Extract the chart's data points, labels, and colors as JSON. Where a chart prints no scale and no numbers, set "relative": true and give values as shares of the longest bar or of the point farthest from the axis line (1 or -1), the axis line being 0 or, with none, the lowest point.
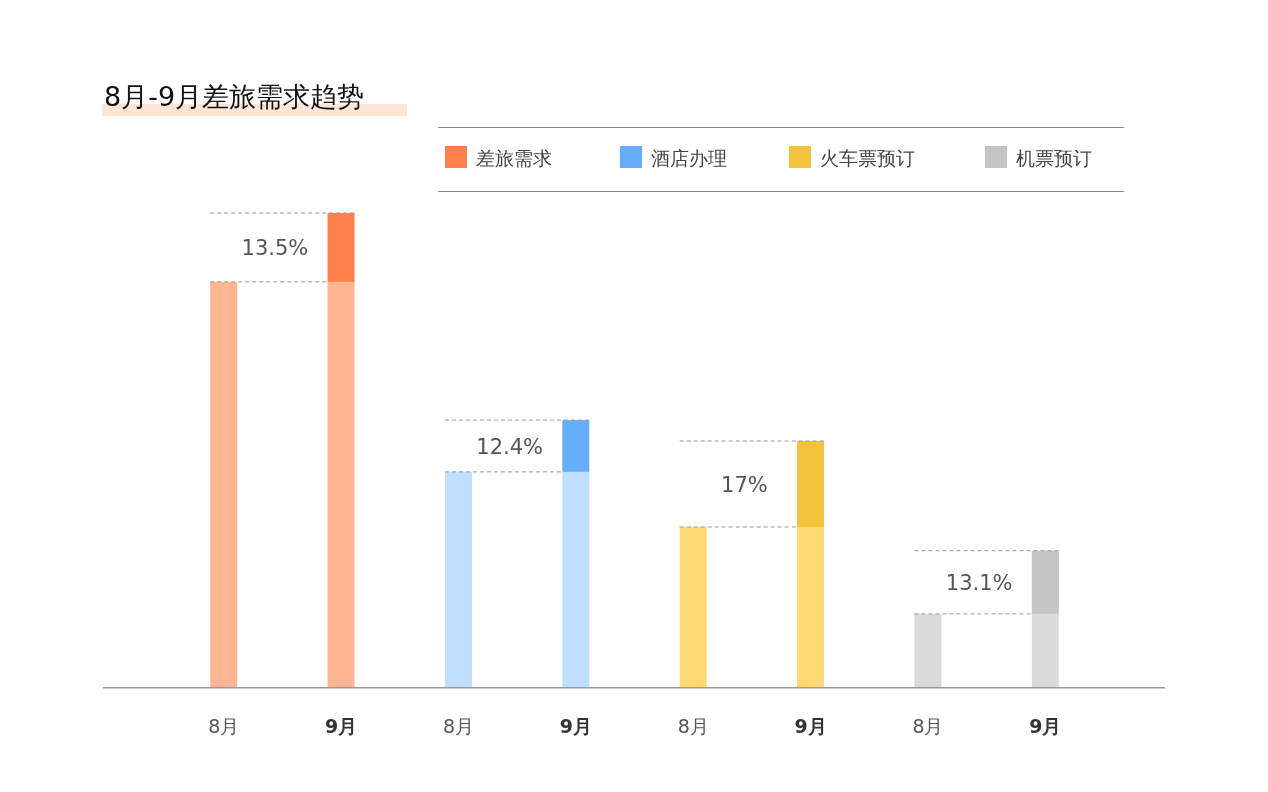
{
  "chart_data": {
    "type": "bar",
    "title": "8月-9月差旅需求趋势",
    "relative": true,
    "stacked": true,
    "legend": "top right",
    "categories": [
      "8月",
      "9月",
      "8月",
      "9月",
      "8月",
      "9月",
      "8月",
      "9月"
    ],
    "series": [
      {
        "color": "#ffb591",
        "values": [
          0.855,
          0.855,
          null,
          null,
          null,
          null,
          null,
          null
        ]
      },
      {
        "color": "#c0defd",
        "values": [
          null,
          null,
          0.455,
          0.455,
          null,
          null,
          null,
          null
        ]
      },
      {
        "color": "#fed972",
        "values": [
          null,
          null,
          null,
          null,
          0.339,
          0.339,
          null,
          null
        ]
      },
      {
        "color": "#dadada",
        "values": [
          null,
          null,
          null,
          null,
          null,
          null,
          0.156,
          0.156
        ]
      },
      {
        "name": "差旅需求",
        "color": "#ff804a",
        "values": [
          null,
          0.145,
          null,
          null,
          null,
          null,
          null,
          null
        ]
      },
      {
        "name": "酒店办理",
        "color": "#66aefc",
        "values": [
          null,
          null,
          null,
          0.109,
          null,
          null,
          null,
          null
        ]
      },
      {
        "name": "火车票预订",
        "color": "#f4c33c",
        "values": [
          null,
          null,
          null,
          null,
          null,
          0.181,
          null,
          null
        ]
      },
      {
        "name": "机票预订",
        "color": "#c4c4c4",
        "values": [
          null,
          null,
          null,
          null,
          null,
          null,
          null,
          0.133
        ]
      }
    ],
    "annotations": [
      "13.5%",
      "12.4%",
      "17%",
      "13.1%"
    ]
  }
}
